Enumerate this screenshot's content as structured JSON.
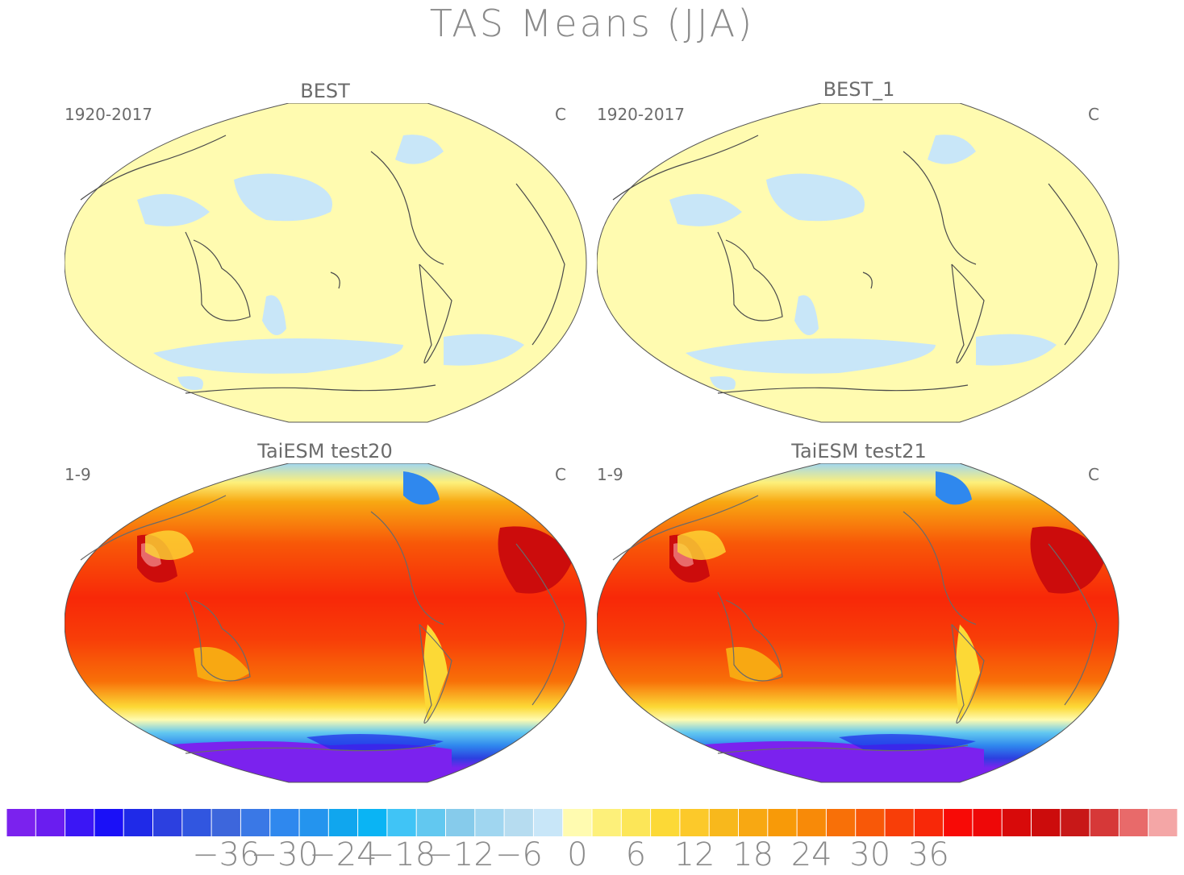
{
  "title": "TAS Means (JJA)",
  "panels": [
    {
      "id": "best",
      "title": "BEST",
      "period": "1920-2017",
      "units": "C",
      "field": "difference"
    },
    {
      "id": "best1",
      "title": "BEST_1",
      "period": "1920-2017",
      "units": "C",
      "field": "difference"
    },
    {
      "id": "test20",
      "title": "TaiESM test20",
      "period": "1-9",
      "units": "C",
      "field": "climatology"
    },
    {
      "id": "test21",
      "title": "TaiESM test21",
      "period": "1-9",
      "units": "C",
      "field": "climatology"
    }
  ],
  "colorbar": {
    "colors": [
      "#7b22ee",
      "#6a1df0",
      "#3b16f5",
      "#1a10f7",
      "#1f2ae8",
      "#2c40e0",
      "#3156e0",
      "#3d66dc",
      "#3a78e6",
      "#2f88ee",
      "#2494ee",
      "#10a6ee",
      "#0ab4f4",
      "#40c4f6",
      "#62c8f0",
      "#86cbeb",
      "#a0d6f0",
      "#b6dcf0",
      "#c8e6f8",
      "#fffbb0",
      "#fdf07a",
      "#fce658",
      "#fcd936",
      "#fcc92a",
      "#f8b81c",
      "#f8a812",
      "#f89a08",
      "#f88a08",
      "#f87008",
      "#f85808",
      "#f83e08",
      "#f82808",
      "#f80a06",
      "#ee0808",
      "#d80a0a",
      "#cc0c0c",
      "#c81818",
      "#d63838",
      "#e86a6a",
      "#f4a6a6"
    ],
    "labels": [
      "−36",
      "−30",
      "−24",
      "−18",
      "−12",
      "−6",
      "0",
      "6",
      "12",
      "18",
      "24",
      "30",
      "36"
    ],
    "label_values": [
      -36,
      -30,
      -24,
      -18,
      -12,
      -6,
      0,
      6,
      12,
      18,
      24,
      30,
      36
    ]
  }
}
